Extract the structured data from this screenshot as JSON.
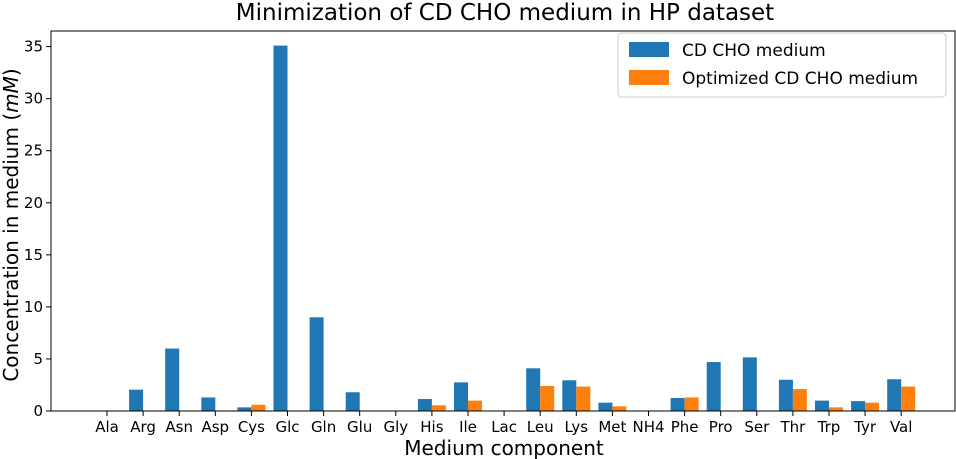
{
  "chart_data": {
    "type": "bar",
    "title": "Minimization of CD CHO medium in HP dataset",
    "xlabel": "Medium component",
    "ylabel": "Concentration in medium (mM)",
    "ylabel_prefix": "Concentration in medium (",
    "ylabel_unit": "mM",
    "ylabel_suffix": ")",
    "ylim": [
      0,
      36.5
    ],
    "yticks": [
      0,
      5,
      10,
      15,
      20,
      25,
      30,
      35
    ],
    "legend_position": "top-right",
    "categories": [
      "Ala",
      "Arg",
      "Asn",
      "Asp",
      "Cys",
      "Glc",
      "Gln",
      "Glu",
      "Gly",
      "His",
      "Ile",
      "Lac",
      "Leu",
      "Lys",
      "Met",
      "NH4",
      "Phe",
      "Pro",
      "Ser",
      "Thr",
      "Trp",
      "Tyr",
      "Val"
    ],
    "series": [
      {
        "name": "CD CHO medium",
        "color": "#1f77b4",
        "values": [
          0,
          2.05,
          6.0,
          1.3,
          0.35,
          35.1,
          9.0,
          1.8,
          0,
          1.15,
          2.75,
          0,
          4.1,
          2.95,
          0.8,
          0,
          1.25,
          4.7,
          5.15,
          3.0,
          1.0,
          0.95,
          3.05
        ]
      },
      {
        "name": "Optimized CD CHO medium",
        "color": "#ff7f0e",
        "values": [
          0,
          0,
          0,
          0,
          0.6,
          0,
          0,
          0,
          0,
          0.55,
          1.0,
          0,
          2.4,
          2.35,
          0.45,
          0,
          1.3,
          0,
          0,
          2.1,
          0.35,
          0.8,
          2.35
        ]
      }
    ]
  }
}
